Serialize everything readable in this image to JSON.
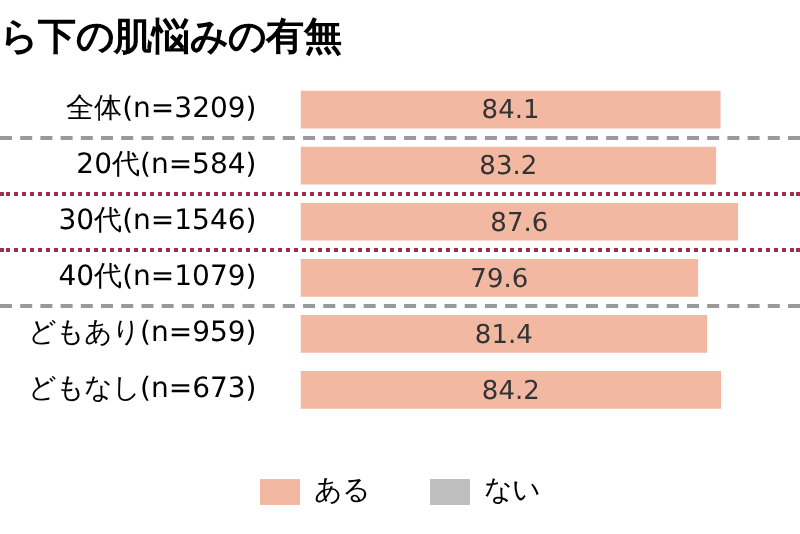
{
  "chart_data": {
    "type": "bar",
    "orientation": "horizontal",
    "stacked": true,
    "title": "ら下の肌悩みの有無",
    "categories": [
      "全体(n=3209)",
      "20代(n=584)",
      "30代(n=1546)",
      "40代(n=1079)",
      "どもあり(n=959)",
      "どもなし(n=673)"
    ],
    "series": [
      {
        "name": "ある",
        "color": "#f2b8a2",
        "values": [
          84.1,
          83.2,
          87.6,
          79.6,
          81.4,
          84.2
        ]
      },
      {
        "name": "ない",
        "color": "#bfbfbf",
        "values": [
          null,
          null,
          null,
          null,
          null,
          null
        ]
      }
    ],
    "xlim": [
      0,
      100
    ],
    "data_labels": true,
    "tick_labels": "y",
    "legend": "bottom"
  }
}
